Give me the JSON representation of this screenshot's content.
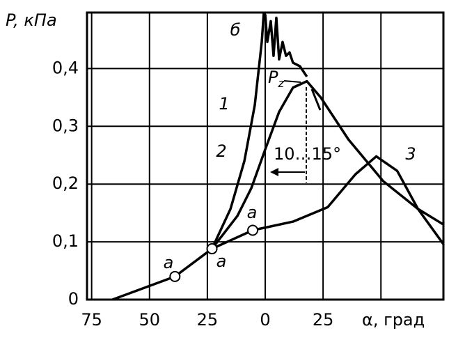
{
  "chart_data": {
    "type": "line",
    "y_label": "P, кПа",
    "x_label": "α, град",
    "xlim": [
      -77,
      77
    ],
    "ylim": [
      0,
      0.497
    ],
    "xticks": [
      {
        "value": -75,
        "label": "75"
      },
      {
        "value": -50,
        "label": "50"
      },
      {
        "value": -25,
        "label": "25"
      },
      0,
      25,
      {
        "value": 50,
        "label": null
      }
    ],
    "yticks": [
      0,
      {
        "value": 0.1,
        "label": "0,1"
      },
      {
        "value": 0.2,
        "label": "0,2"
      },
      {
        "value": 0.3,
        "label": "0,3"
      },
      {
        "value": 0.4,
        "label": "0,4"
      }
    ],
    "grid": true,
    "series": [
      {
        "name": "3",
        "color": "#000000",
        "x": [
          -66,
          -39,
          -23,
          -5.4,
          12,
          27,
          39,
          48,
          57,
          66,
          77
        ],
        "values": [
          0,
          0.04,
          0.088,
          0.12,
          0.135,
          0.16,
          0.217,
          0.248,
          0.223,
          0.157,
          0.096
        ]
      },
      {
        "name": "2",
        "color": "#000000",
        "x": [
          -23,
          -12,
          -6,
          0,
          6,
          12,
          18,
          24,
          36,
          51,
          66,
          77
        ],
        "values": [
          0.088,
          0.145,
          0.193,
          0.26,
          0.325,
          0.367,
          0.378,
          0.35,
          0.277,
          0.205,
          0.157,
          0.13
        ]
      },
      {
        "name": "1",
        "color": "#000000",
        "x": [
          -23,
          -15,
          -9,
          -4.5,
          -1.5,
          -0.6
        ],
        "values": [
          0.088,
          0.157,
          0.24,
          0.337,
          0.446,
          0.497
        ]
      },
      {
        "name": "б",
        "color": "#000000",
        "x": [
          0,
          0.9,
          2.4,
          3.6,
          4.8,
          6,
          7.5,
          9,
          10.5,
          12,
          15,
          18
        ],
        "values": [
          0.494,
          0.446,
          0.482,
          0.422,
          0.488,
          0.416,
          0.446,
          0.422,
          0.428,
          0.41,
          0.404,
          0.386
        ]
      }
    ],
    "points": {
      "name": "a",
      "x": [
        -39,
        -23,
        -5.4
      ],
      "values": [
        0.04,
        0.088,
        0.12
      ]
    },
    "peak_label": {
      "text": "P",
      "sub": "z"
    },
    "range_label": "10…15°"
  }
}
